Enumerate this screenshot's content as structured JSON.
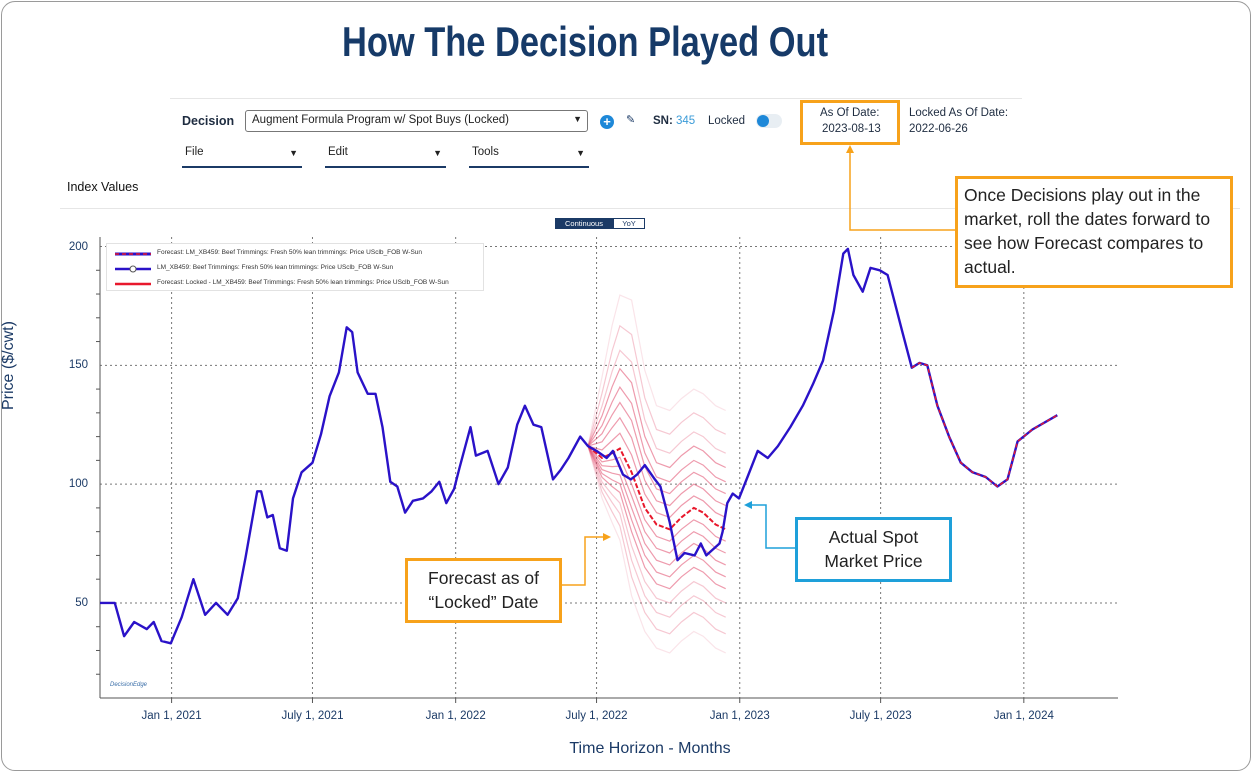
{
  "title": "How The Decision Played Out",
  "toolbar": {
    "decision_label": "Decision",
    "decision_value": "Augment Formula Program w/ Spot Buys (Locked)",
    "sn_label": "SN:",
    "sn_value": "345",
    "locked_label": "Locked",
    "locked_on": true,
    "as_of_label": "As Of Date:",
    "as_of_value": "2023-08-13",
    "locked_as_of_label": "Locked As Of Date:",
    "locked_as_of_value": "2022-06-26",
    "menus": [
      "File",
      "Edit",
      "Tools"
    ],
    "add_icon": "plus-circle-icon",
    "edit_icon": "pencil-icon"
  },
  "section_label": "Index Values",
  "view_toggle": {
    "options": [
      "Continuous",
      "YoY"
    ],
    "selected": "Continuous"
  },
  "logo_text": "DecisionEdge",
  "annotations": {
    "roll_forward": "Once Decisions play out in the market, roll the dates forward to see how Forecast compares to actual.",
    "forecast_locked_line1": "Forecast as of",
    "forecast_locked_line2": "“Locked” Date",
    "actual_line1": "Actual Spot",
    "actual_line2": "Market Price"
  },
  "colors": {
    "actual": "#2a12c8",
    "forecast_locked": "#e8182c",
    "band": "#e0486a",
    "accent_orange": "#f7a21b",
    "accent_blue": "#1ea0da",
    "title": "#163a68"
  },
  "chart_data": {
    "type": "line",
    "xlabel": "Time Horizon - Months",
    "ylabel": "Price ($/cwt)",
    "xlim": [
      "2020-10-01",
      "2024-05-01"
    ],
    "ylim": [
      10,
      204
    ],
    "grid": true,
    "legend_position": "top-left",
    "x_ticks": [
      {
        "date": "2021-01-01",
        "label": "Jan 1, 2021"
      },
      {
        "date": "2021-07-01",
        "label": "July 1, 2021"
      },
      {
        "date": "2022-01-01",
        "label": "Jan 1, 2022"
      },
      {
        "date": "2022-07-01",
        "label": "July 1, 2022"
      },
      {
        "date": "2023-01-01",
        "label": "Jan 1, 2023"
      },
      {
        "date": "2023-07-01",
        "label": "July 1, 2023"
      },
      {
        "date": "2024-01-01",
        "label": "Jan 1, 2024"
      }
    ],
    "y_ticks": [
      {
        "value": 50,
        "label": "50"
      },
      {
        "value": 100,
        "label": "100"
      },
      {
        "value": 150,
        "label": "150"
      },
      {
        "value": 200,
        "label": "200"
      }
    ],
    "series": [
      {
        "name": "LM_XB459: Beef Trimmings: Fresh 50% lean trimmings: Price USclb_FOB W-Sun",
        "style": "actual",
        "points": [
          [
            "2020-10-01",
            50
          ],
          [
            "2020-10-20",
            50
          ],
          [
            "2020-11-01",
            36
          ],
          [
            "2020-11-14",
            42
          ],
          [
            "2020-11-30",
            39
          ],
          [
            "2020-12-09",
            42
          ],
          [
            "2020-12-19",
            34
          ],
          [
            "2020-12-31",
            33
          ],
          [
            "2021-01-14",
            44
          ],
          [
            "2021-01-29",
            60
          ],
          [
            "2021-02-13",
            45
          ],
          [
            "2021-02-27",
            50
          ],
          [
            "2021-03-14",
            45
          ],
          [
            "2021-03-27",
            52
          ],
          [
            "2021-04-06",
            69
          ],
          [
            "2021-04-21",
            97
          ],
          [
            "2021-04-26",
            97
          ],
          [
            "2021-05-04",
            86
          ],
          [
            "2021-05-11",
            87
          ],
          [
            "2021-05-20",
            73
          ],
          [
            "2021-05-29",
            72
          ],
          [
            "2021-06-06",
            94
          ],
          [
            "2021-06-17",
            105
          ],
          [
            "2021-07-01",
            109
          ],
          [
            "2021-07-12",
            121
          ],
          [
            "2021-07-23",
            137
          ],
          [
            "2021-08-04",
            147
          ],
          [
            "2021-08-14",
            166
          ],
          [
            "2021-08-21",
            164
          ],
          [
            "2021-08-28",
            147
          ],
          [
            "2021-09-10",
            138
          ],
          [
            "2021-09-20",
            138
          ],
          [
            "2021-09-29",
            124
          ],
          [
            "2021-10-09",
            101
          ],
          [
            "2021-10-18",
            99
          ],
          [
            "2021-10-28",
            88
          ],
          [
            "2021-11-07",
            93
          ],
          [
            "2021-11-20",
            94
          ],
          [
            "2021-12-01",
            97
          ],
          [
            "2021-12-11",
            101
          ],
          [
            "2021-12-20",
            92
          ],
          [
            "2021-12-30",
            98
          ],
          [
            "2022-01-06",
            107
          ],
          [
            "2022-01-20",
            124
          ],
          [
            "2022-01-27",
            112
          ],
          [
            "2022-02-11",
            114
          ],
          [
            "2022-02-25",
            100
          ],
          [
            "2022-03-09",
            107
          ],
          [
            "2022-03-21",
            125
          ],
          [
            "2022-03-31",
            133
          ],
          [
            "2022-04-11",
            125
          ],
          [
            "2022-04-21",
            124
          ],
          [
            "2022-05-06",
            102
          ],
          [
            "2022-05-16",
            106
          ],
          [
            "2022-05-26",
            111
          ],
          [
            "2022-06-10",
            120
          ],
          [
            "2022-06-20",
            116
          ],
          [
            "2022-07-01",
            114
          ],
          [
            "2022-07-14",
            111
          ],
          [
            "2022-07-22",
            114
          ],
          [
            "2022-08-04",
            104
          ],
          [
            "2022-08-14",
            102
          ],
          [
            "2022-08-22",
            104
          ],
          [
            "2022-09-01",
            108
          ],
          [
            "2022-09-14",
            102
          ],
          [
            "2022-09-21",
            99
          ],
          [
            "2022-10-03",
            84
          ],
          [
            "2022-10-13",
            68
          ],
          [
            "2022-10-22",
            71
          ],
          [
            "2022-11-04",
            70
          ],
          [
            "2022-11-12",
            75
          ],
          [
            "2022-11-19",
            70
          ],
          [
            "2022-12-06",
            75
          ],
          [
            "2022-12-10",
            80
          ],
          [
            "2022-12-16",
            92
          ],
          [
            "2022-12-23",
            96
          ],
          [
            "2022-12-31",
            94
          ],
          [
            "2023-01-11",
            103
          ],
          [
            "2023-01-24",
            114
          ],
          [
            "2023-02-06",
            111
          ],
          [
            "2023-02-19",
            116
          ],
          [
            "2023-03-07",
            124
          ],
          [
            "2023-03-23",
            133
          ],
          [
            "2023-04-05",
            142
          ],
          [
            "2023-04-18",
            152
          ],
          [
            "2023-05-02",
            173
          ],
          [
            "2023-05-14",
            197
          ],
          [
            "2023-05-20",
            199
          ],
          [
            "2023-05-27",
            188
          ],
          [
            "2023-06-08",
            181
          ],
          [
            "2023-06-18",
            191
          ],
          [
            "2023-06-30",
            190
          ],
          [
            "2023-07-10",
            188
          ],
          [
            "2023-07-29",
            164
          ],
          [
            "2023-08-10",
            149
          ],
          [
            "2023-08-20",
            151
          ],
          [
            "2023-08-30",
            150
          ],
          [
            "2023-09-12",
            133
          ],
          [
            "2023-09-27",
            120
          ],
          [
            "2023-10-12",
            109
          ],
          [
            "2023-10-27",
            105
          ],
          [
            "2023-11-13",
            103
          ],
          [
            "2023-11-28",
            99
          ],
          [
            "2023-12-11",
            102
          ],
          [
            "2023-12-24",
            118
          ],
          [
            "2024-01-12",
            123
          ],
          [
            "2024-02-13",
            129
          ]
        ]
      },
      {
        "name": "Forecast: LM_XB459: Beef Trimmings: Fresh 50% lean trimmings: Price USclb_FOB W-Sun",
        "style": "forecast",
        "points": [
          [
            "2023-08-10",
            149
          ],
          [
            "2023-08-20",
            151
          ],
          [
            "2023-08-30",
            150
          ],
          [
            "2023-09-12",
            133
          ],
          [
            "2023-09-27",
            120
          ],
          [
            "2023-10-12",
            109
          ],
          [
            "2023-10-27",
            105
          ],
          [
            "2023-11-13",
            103
          ],
          [
            "2023-11-28",
            99
          ],
          [
            "2023-12-11",
            102
          ],
          [
            "2023-12-24",
            118
          ],
          [
            "2024-01-12",
            123
          ],
          [
            "2024-02-13",
            129
          ]
        ]
      },
      {
        "name": "Forecast: Locked - LM_XB459: Beef Trimmings: Fresh 50% lean trimmings: Price USclb_FOB W-Sun",
        "style": "locked",
        "points": [
          [
            "2022-06-20",
            116
          ],
          [
            "2022-07-08",
            111
          ],
          [
            "2022-07-21",
            113
          ],
          [
            "2022-07-31",
            115
          ],
          [
            "2022-08-15",
            105
          ],
          [
            "2022-09-01",
            90
          ],
          [
            "2022-09-16",
            83
          ],
          [
            "2022-10-03",
            81
          ],
          [
            "2022-10-18",
            86
          ],
          [
            "2022-11-03",
            90
          ],
          [
            "2022-11-15",
            88
          ],
          [
            "2022-12-01",
            83
          ],
          [
            "2022-12-14",
            81
          ]
        ]
      }
    ],
    "locked_band_offsets": [
      -52,
      -44,
      -37,
      -31,
      -25,
      -20,
      -15,
      -10,
      -5,
      5,
      10,
      15,
      20,
      26,
      32,
      40,
      50
    ]
  }
}
